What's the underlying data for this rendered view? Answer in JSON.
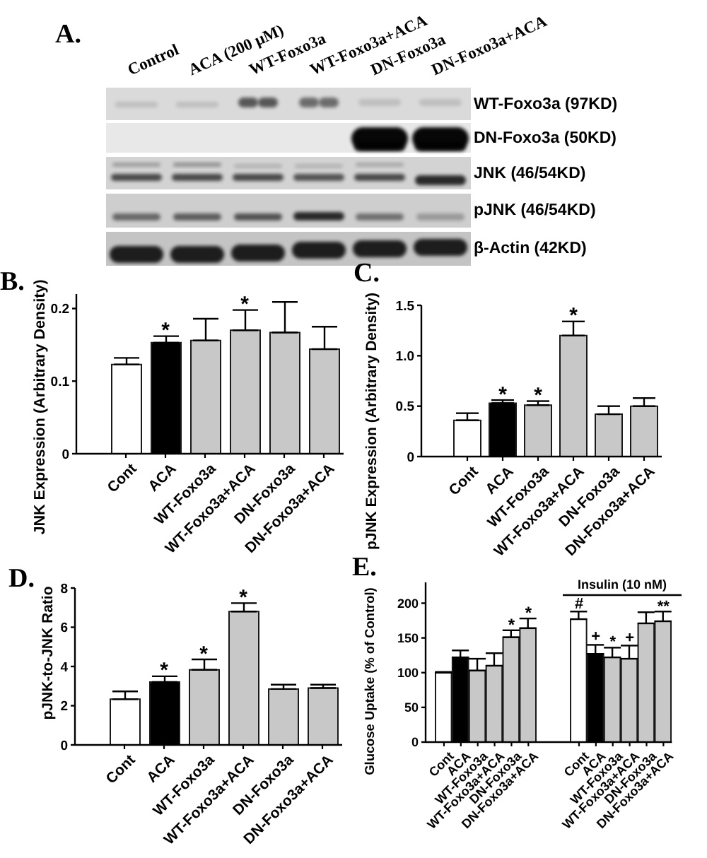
{
  "chart_data": [
    {
      "type": "other",
      "title": "A.",
      "categories": [
        "Control",
        "ACA (200 μM)",
        "WT-Foxo3a",
        "WT-Foxo3a+ACA",
        "DN-Foxo3a",
        "DN-Foxo3a+ACA"
      ],
      "annotations": [
        "WT-Foxo3a (97KD)",
        "DN-Foxo3a (50KD)",
        "JNK (46/54KD)",
        "pJNK (46/54KD)",
        "β-Actin (42KD)"
      ]
    },
    {
      "type": "bar",
      "title": "B.",
      "ylabel": "JNK Expression (Arbitrary Density)",
      "categories": [
        "Cont",
        "ACA",
        "WT-Foxo3a",
        "WT-Foxo3a+ACA",
        "DN-Foxo3a",
        "DN-Foxo3a+ACA"
      ],
      "values": [
        0.123,
        0.153,
        0.156,
        0.17,
        0.167,
        0.144
      ],
      "errors": [
        [
          0.123,
          0.132
        ],
        [
          0.153,
          0.162
        ],
        [
          0.156,
          0.186
        ],
        [
          0.17,
          0.198
        ],
        [
          0.167,
          0.209
        ],
        [
          0.144,
          0.175
        ]
      ],
      "colors": [
        "#ffffff",
        "#000000",
        "#c8c8c8",
        "#c8c8c8",
        "#c8c8c8",
        "#c8c8c8"
      ],
      "ylim": [
        0,
        0.22
      ],
      "yticks": [
        0,
        0.1,
        0.2
      ],
      "annotations": [
        {
          "text": "*",
          "x": "ACA",
          "y": 0.153
        },
        {
          "text": "*",
          "x": "WT-Foxo3a+ACA",
          "y": 0.17
        }
      ]
    },
    {
      "type": "bar",
      "title": "C.",
      "ylabel": "pJNK Expression (Arbitrary Density)",
      "categories": [
        "Cont",
        "ACA",
        "WT-Foxo3a",
        "WT-Foxo3a+ACA",
        "DN-Foxo3a",
        "DN-Foxo3a+ACA"
      ],
      "values": [
        0.36,
        0.53,
        0.51,
        1.2,
        0.42,
        0.5
      ],
      "errors": [
        [
          0.36,
          0.43
        ],
        [
          0.53,
          0.56
        ],
        [
          0.51,
          0.55
        ],
        [
          1.2,
          1.34
        ],
        [
          0.42,
          0.5
        ],
        [
          0.5,
          0.58
        ]
      ],
      "colors": [
        "#ffffff",
        "#000000",
        "#c8c8c8",
        "#c8c8c8",
        "#c8c8c8",
        "#c8c8c8"
      ],
      "ylim": [
        0,
        1.5
      ],
      "yticks": [
        0,
        0.5,
        {
          "value": 1,
          "label": "1.0"
        },
        1.5
      ],
      "annotations": [
        {
          "text": "*",
          "x": "ACA",
          "y": 0.53
        },
        {
          "text": "*",
          "x": "WT-Foxo3a",
          "y": 0.51
        },
        {
          "text": "*",
          "x": "WT-Foxo3a+ACA",
          "y": 1.2
        }
      ]
    },
    {
      "type": "bar",
      "title": "D.",
      "ylabel": "pJNK-to-JNK Ratio",
      "categories": [
        "Cont",
        "ACA",
        "WT-Foxo3a",
        "WT-Foxo3a+ACA",
        "DN-Foxo3a",
        "DN-Foxo3a+ACA"
      ],
      "values": [
        2.33,
        3.21,
        3.83,
        6.8,
        2.85,
        2.9
      ],
      "errors": [
        [
          2.33,
          2.73
        ],
        [
          3.21,
          3.5
        ],
        [
          3.83,
          4.36
        ],
        [
          6.8,
          7.23
        ],
        [
          2.85,
          3.07
        ],
        [
          2.9,
          3.07
        ]
      ],
      "colors": [
        "#ffffff",
        "#000000",
        "#c8c8c8",
        "#c8c8c8",
        "#c8c8c8",
        "#c8c8c8"
      ],
      "ylim": [
        0,
        8
      ],
      "yticks": [
        0,
        2,
        4,
        6,
        8
      ],
      "annotations": [
        {
          "text": "*",
          "x": "ACA",
          "y": 3.21
        },
        {
          "text": "*",
          "x": "WT-Foxo3a",
          "y": 3.83
        },
        {
          "text": "*",
          "x": "WT-Foxo3a+ACA",
          "y": 6.8
        }
      ]
    },
    {
      "type": "bar",
      "title": "E.",
      "ylabel": "Glucose Uptake (% of Control)",
      "categories": [
        "Cont",
        "ACA",
        "WT-Foxo3a",
        "WT-Foxo3a+ACA",
        "DN-Foxo3a",
        "DN-Foxo3a+ACA",
        null,
        null,
        "Cont",
        "ACA",
        "WT-Foxo3a",
        "WT-Foxo3a+ACA",
        "DN-Foxo3a",
        "DN-Foxo3a+ACA"
      ],
      "values": [
        100,
        122,
        103,
        110,
        151,
        164,
        null,
        null,
        177,
        127,
        122,
        120,
        171,
        174
      ],
      "errors": [
        [
          100,
          101
        ],
        [
          122,
          132
        ],
        [
          103,
          120
        ],
        [
          110,
          128
        ],
        [
          151,
          161
        ],
        [
          164,
          178
        ],
        null,
        null,
        [
          177,
          188
        ],
        [
          127,
          140
        ],
        [
          122,
          136
        ],
        [
          120,
          139
        ],
        [
          171,
          187
        ],
        [
          174,
          188
        ]
      ],
      "colors": [
        "#ffffff",
        "#000000",
        "#c8c8c8",
        "#c8c8c8",
        "#c8c8c8",
        "#c8c8c8",
        null,
        null,
        "#ffffff",
        "#000000",
        "#c8c8c8",
        "#c8c8c8",
        "#c8c8c8",
        "#c8c8c8"
      ],
      "ylim": [
        0,
        230
      ],
      "yticks": [
        0,
        50,
        100,
        150,
        200
      ],
      "annotations": [
        "Insulin (10 nM)",
        {
          "text": "*",
          "x": "DN-Foxo3a",
          "y": 151
        },
        {
          "text": "*",
          "x": "DN-Foxo3a+ACA",
          "y": 164
        },
        "#",
        "+",
        "*",
        "+",
        "**"
      ]
    }
  ]
}
